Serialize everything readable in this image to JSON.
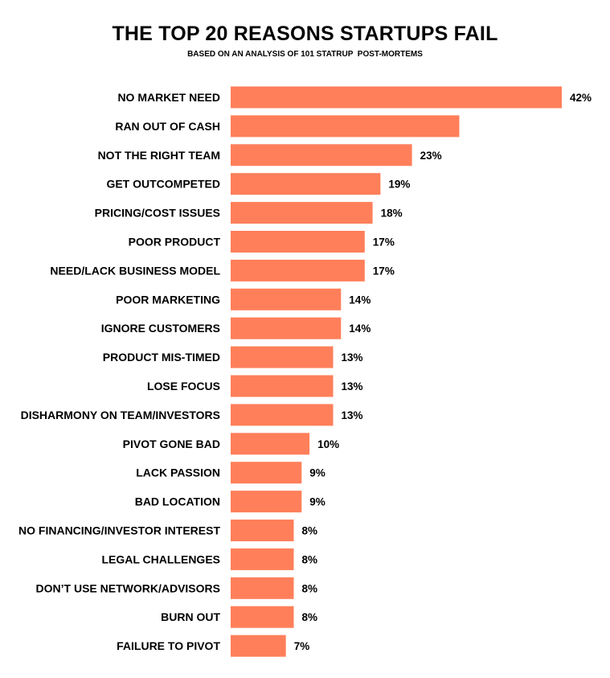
{
  "chart_data": {
    "type": "bar",
    "orientation": "horizontal",
    "title": "THE TOP 20 REASONS STARTUPS FAIL",
    "subtitle": "BASED ON AN ANALYSIS OF 101 STATRUP  POST-MORTEMS",
    "categories": [
      "NO MARKET NEED",
      "RAN OUT OF CASH",
      "NOT THE RIGHT TEAM",
      "GET OUTCOMPETED",
      "PRICING/COST ISSUES",
      "POOR PRODUCT",
      "NEED/LACK BUSINESS MODEL",
      "POOR MARKETING",
      "IGNORE CUSTOMERS",
      "PRODUCT MIS-TIMED",
      "LOSE FOCUS",
      "DISHARMONY ON TEAM/INVESTORS",
      "PIVOT GONE BAD",
      "LACK PASSION",
      "BAD LOCATION",
      "NO FINANCING/INVESTOR INTEREST",
      "LEGAL CHALLENGES",
      "DON’T USE NETWORK/ADVISORS",
      "BURN OUT",
      "FAILURE TO PIVOT"
    ],
    "values": [
      42,
      29,
      23,
      19,
      18,
      17,
      17,
      14,
      14,
      13,
      13,
      13,
      10,
      9,
      9,
      8,
      8,
      8,
      8,
      7
    ],
    "value_labels": [
      "42%",
      "",
      "23%",
      "19%",
      "18%",
      "17%",
      "17%",
      "14%",
      "14%",
      "13%",
      "13%",
      "13%",
      "10%",
      "9%",
      "9%",
      "8%",
      "8%",
      "8%",
      "8%",
      "7%"
    ],
    "unit": "%",
    "xlim": [
      0,
      42
    ],
    "grid": false,
    "bar_color": "#ff7f5a",
    "text_color": "#000000"
  }
}
